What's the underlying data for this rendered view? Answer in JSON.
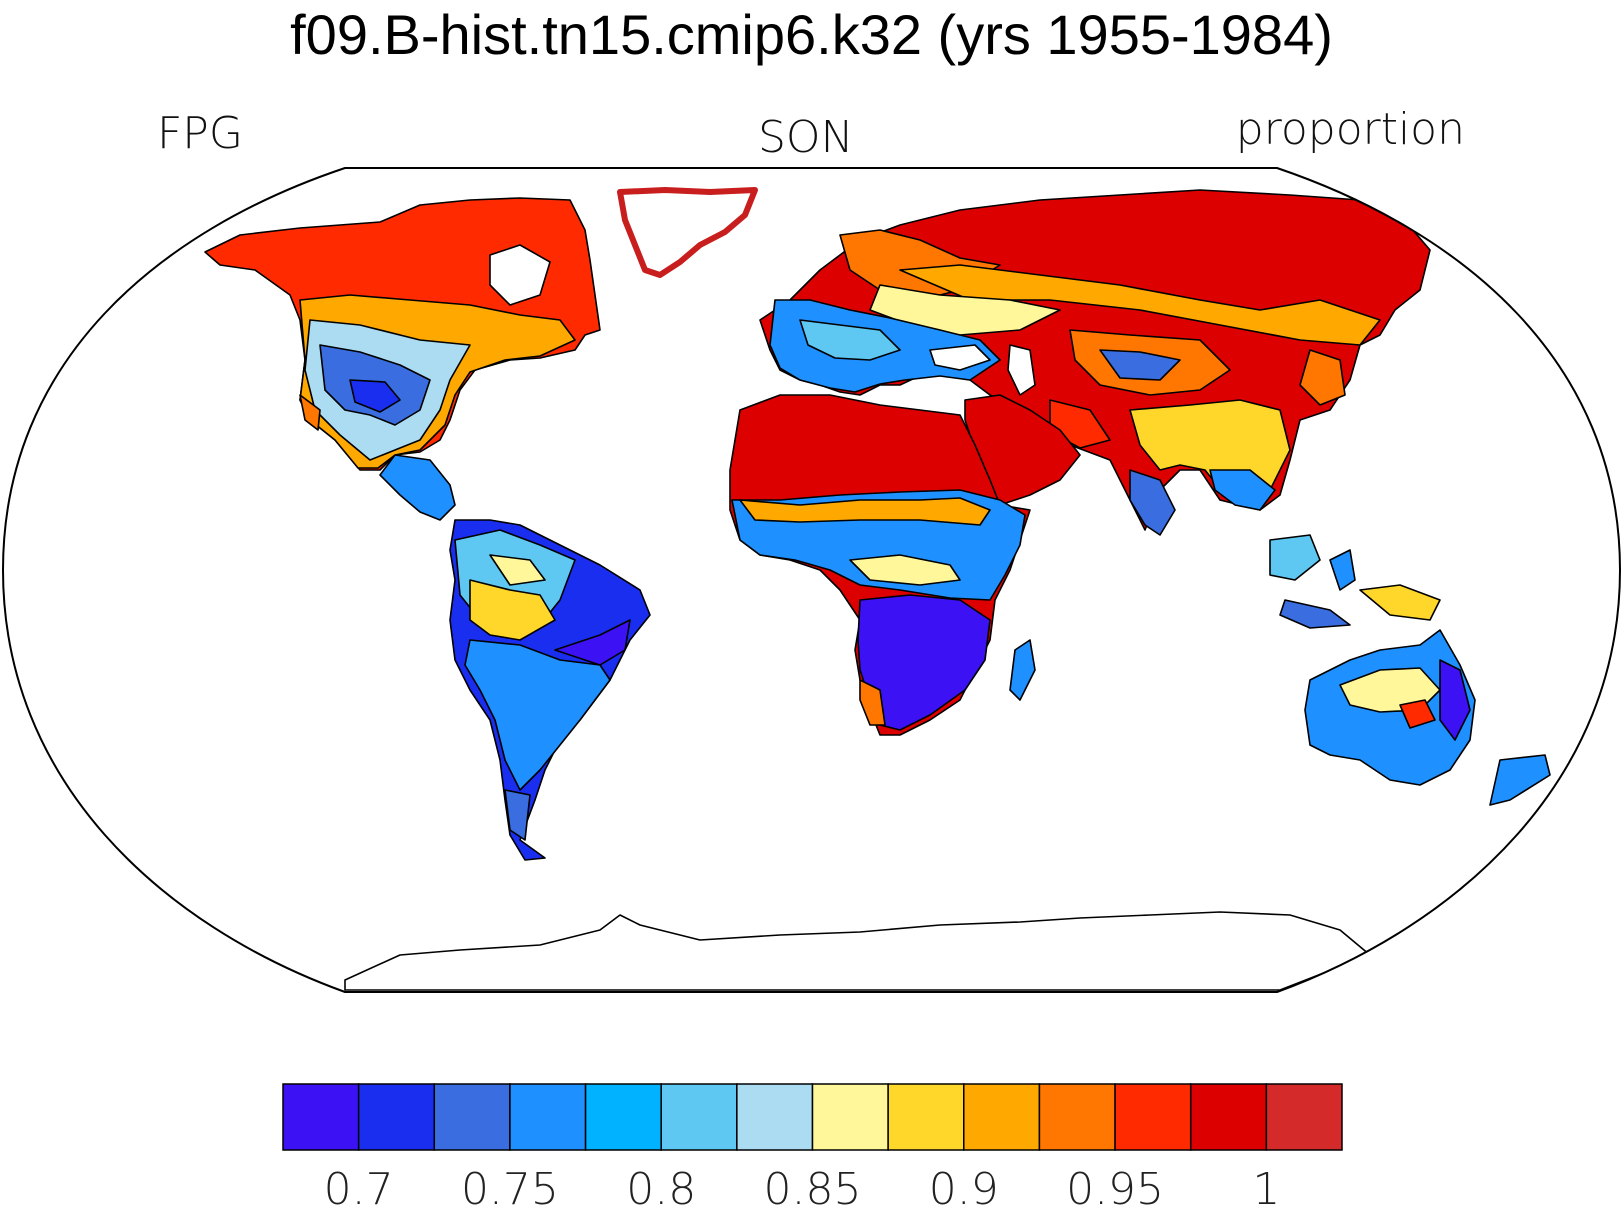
{
  "title": "f09.B-hist.tn15.cmip6.k32 (yrs 1955-1984)",
  "left_label": "FPG",
  "center_label": "SON",
  "right_label": "proportion",
  "colorbar": {
    "colors": [
      "#3c12f5",
      "#1a2ef0",
      "#3a6ee0",
      "#1f90ff",
      "#00b2ff",
      "#5ec8f2",
      "#abdcf2",
      "#fff79a",
      "#ffd62a",
      "#ffa800",
      "#ff7600",
      "#ff2a00",
      "#dd0000",
      "#d42a2a"
    ],
    "tick_labels": [
      "0.7",
      "0.75",
      "0.8",
      "0.85",
      "0.9",
      "0.95",
      "1"
    ],
    "levels": [
      0.675,
      0.7,
      0.725,
      0.75,
      0.775,
      0.8,
      0.825,
      0.85,
      0.875,
      0.9,
      0.925,
      0.95,
      0.975,
      1.0
    ]
  },
  "map": {
    "projection": "robinson",
    "variable": "FPG",
    "season": "SON",
    "units": "proportion"
  }
}
